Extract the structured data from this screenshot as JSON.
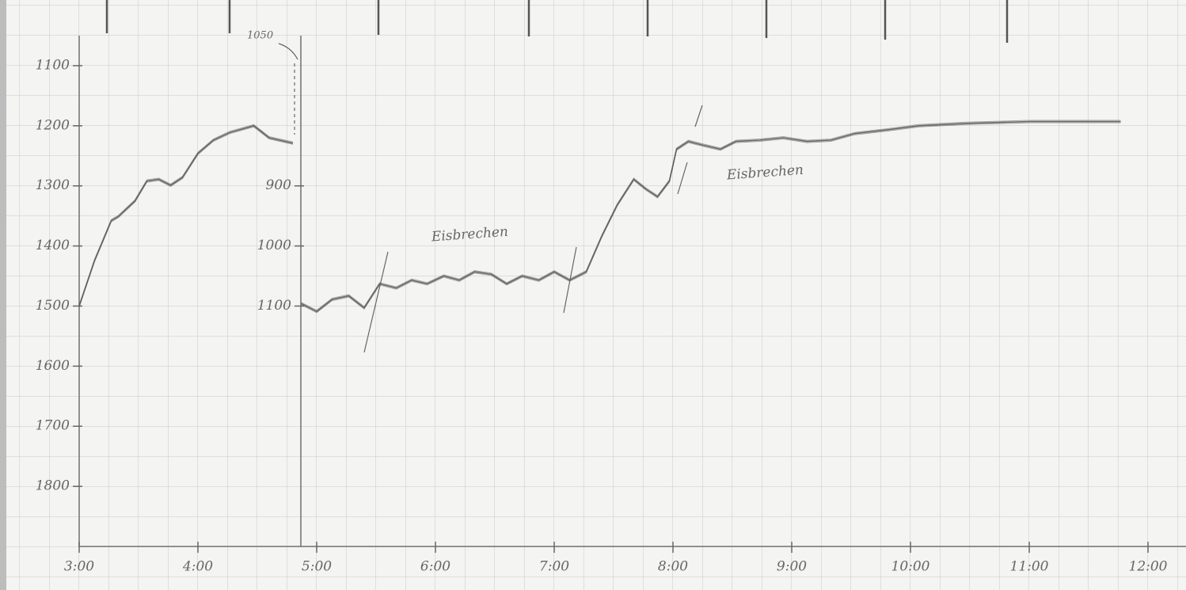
{
  "chart_data": {
    "type": "line",
    "x_axis_ticks": "hours",
    "xlim": [
      3,
      12.3
    ],
    "xticks": [
      {
        "value": 3,
        "label": "3:00"
      },
      {
        "value": 4,
        "label": "4:00"
      },
      {
        "value": 5,
        "label": "5:00"
      },
      {
        "value": 6,
        "label": "6:00"
      },
      {
        "value": 7,
        "label": "7:00"
      },
      {
        "value": 8,
        "label": "8:00"
      },
      {
        "value": 9,
        "label": "9:00"
      },
      {
        "value": 10,
        "label": "10:00"
      },
      {
        "value": 11,
        "label": "11:00"
      },
      {
        "value": 12,
        "label": "12:00"
      }
    ],
    "ylim": [
      1900,
      1050
    ],
    "yticks": [
      1100,
      1200,
      1300,
      1400,
      1500,
      1600,
      1700,
      1800
    ],
    "y2lim": [
      1500,
      650
    ],
    "y2ticks": [
      900,
      1000,
      1100
    ],
    "grid": true,
    "series": [
      {
        "color": "#5a5a5a",
        "x": [
          3.0,
          3.13,
          3.27,
          3.33,
          3.47,
          3.57,
          3.67,
          3.77,
          3.87,
          4.0,
          4.13,
          4.27,
          4.47,
          4.6,
          4.8
        ],
        "values": [
          1500,
          1424,
          1358,
          1351,
          1325,
          1292,
          1289,
          1299,
          1286,
          1246,
          1224,
          1211,
          1200,
          1220,
          1229
        ]
      },
      {
        "color": "#5a5a5a",
        "axis": "y2",
        "x": [
          4.87,
          5.0,
          5.13,
          5.27,
          5.4,
          5.53,
          5.67,
          5.8,
          5.93,
          6.07,
          6.2,
          6.33,
          6.47,
          6.6,
          6.73,
          6.87,
          7.0,
          7.13,
          7.27,
          7.4,
          7.53,
          7.67,
          7.77,
          7.87,
          7.97,
          8.03,
          8.13,
          8.27,
          8.4,
          8.53,
          8.73,
          8.93,
          9.13,
          9.33,
          9.53,
          9.8,
          10.07,
          10.47,
          11.0,
          11.77
        ],
        "values": [
          1096,
          1109,
          1089,
          1083,
          1103,
          1063,
          1070,
          1057,
          1063,
          1050,
          1057,
          1043,
          1047,
          1063,
          1050,
          1057,
          1043,
          1057,
          1043,
          984,
          932,
          889,
          905,
          918,
          892,
          839,
          826,
          833,
          839,
          826,
          824,
          820,
          826,
          824,
          813,
          807,
          800,
          796,
          793,
          793
        ]
      }
    ],
    "annotations": [
      "1050",
      "Eisbrechen",
      "Eisbrechen"
    ]
  }
}
